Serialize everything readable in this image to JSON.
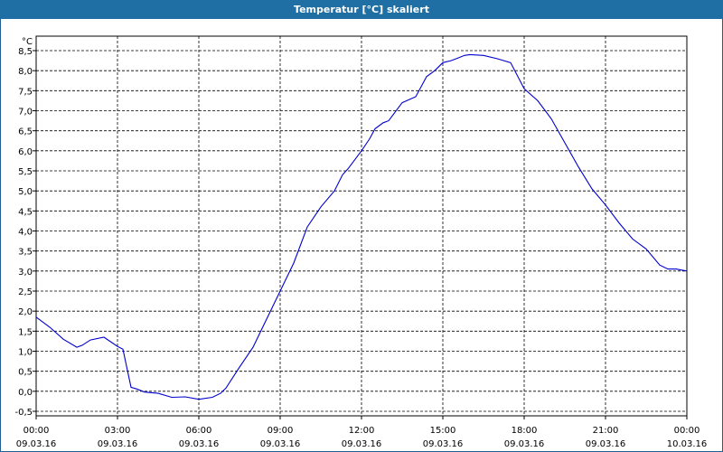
{
  "window": {
    "title": "Temperatur [°C] skaliert"
  },
  "chart_data": {
    "type": "line",
    "title": "Temperatur [°C] skaliert",
    "ylabel": "°C",
    "xlabel": "",
    "ylim": [
      -0.6,
      8.7
    ],
    "xlim": [
      0,
      24
    ],
    "grid": true,
    "yticks": [
      -0.5,
      0.0,
      0.5,
      1.0,
      1.5,
      2.0,
      2.5,
      3.0,
      3.5,
      4.0,
      4.5,
      5.0,
      5.5,
      6.0,
      6.5,
      7.0,
      7.5,
      8.0,
      8.5
    ],
    "ytick_labels": [
      "-0,5",
      "0,0",
      "0,5",
      "1,0",
      "1,5",
      "2,0",
      "2,5",
      "3,0",
      "3,5",
      "4,0",
      "4,5",
      "5,0",
      "5,5",
      "6,0",
      "6,5",
      "7,0",
      "7,5",
      "8,0",
      "8,5"
    ],
    "xticks": [
      {
        "time": "00:00",
        "date": "09.03.16"
      },
      {
        "time": "03:00",
        "date": "09.03.16"
      },
      {
        "time": "06:00",
        "date": "09.03.16"
      },
      {
        "time": "09:00",
        "date": "09.03.16"
      },
      {
        "time": "12:00",
        "date": "09.03.16"
      },
      {
        "time": "15:00",
        "date": "09.03.16"
      },
      {
        "time": "18:00",
        "date": "09.03.16"
      },
      {
        "time": "21:00",
        "date": "09.03.16"
      },
      {
        "time": "00:00",
        "date": "10.03.16"
      }
    ],
    "line_color": "#0000cc",
    "series": [
      {
        "x": [
          0,
          0.5,
          1.0,
          1.5,
          1.7,
          2.0,
          2.5,
          3.0,
          3.2,
          3.5,
          3.7,
          4.0,
          4.5,
          5.0,
          5.5,
          6.0,
          6.5,
          6.8,
          7.0,
          7.5,
          8.0,
          8.5,
          9.0,
          9.5,
          10.0,
          10.5,
          11.0,
          11.3,
          11.5,
          12.0,
          12.3,
          12.5,
          12.8,
          13.0,
          13.5,
          14.0,
          14.2,
          14.4,
          14.7,
          15.0,
          15.3,
          15.5,
          15.8,
          16.0,
          16.5,
          17.0,
          17.5,
          18.0,
          18.5,
          19.0,
          19.5,
          20.0,
          20.5,
          21.0,
          21.5,
          22.0,
          22.5,
          23.0,
          23.3,
          23.6,
          24.0
        ],
        "y": [
          1.85,
          1.6,
          1.3,
          1.1,
          1.15,
          1.28,
          1.35,
          1.12,
          1.05,
          0.1,
          0.06,
          -0.02,
          -0.05,
          -0.15,
          -0.14,
          -0.2,
          -0.15,
          -0.05,
          0.08,
          0.6,
          1.1,
          1.8,
          2.5,
          3.2,
          4.1,
          4.6,
          5.0,
          5.4,
          5.55,
          6.0,
          6.3,
          6.55,
          6.7,
          6.75,
          7.2,
          7.35,
          7.6,
          7.85,
          8.0,
          8.2,
          8.25,
          8.3,
          8.38,
          8.4,
          8.38,
          8.3,
          8.2,
          7.55,
          7.25,
          6.8,
          6.2,
          5.6,
          5.05,
          4.65,
          4.2,
          3.8,
          3.55,
          3.15,
          3.05,
          3.05,
          3.0
        ]
      }
    ]
  }
}
